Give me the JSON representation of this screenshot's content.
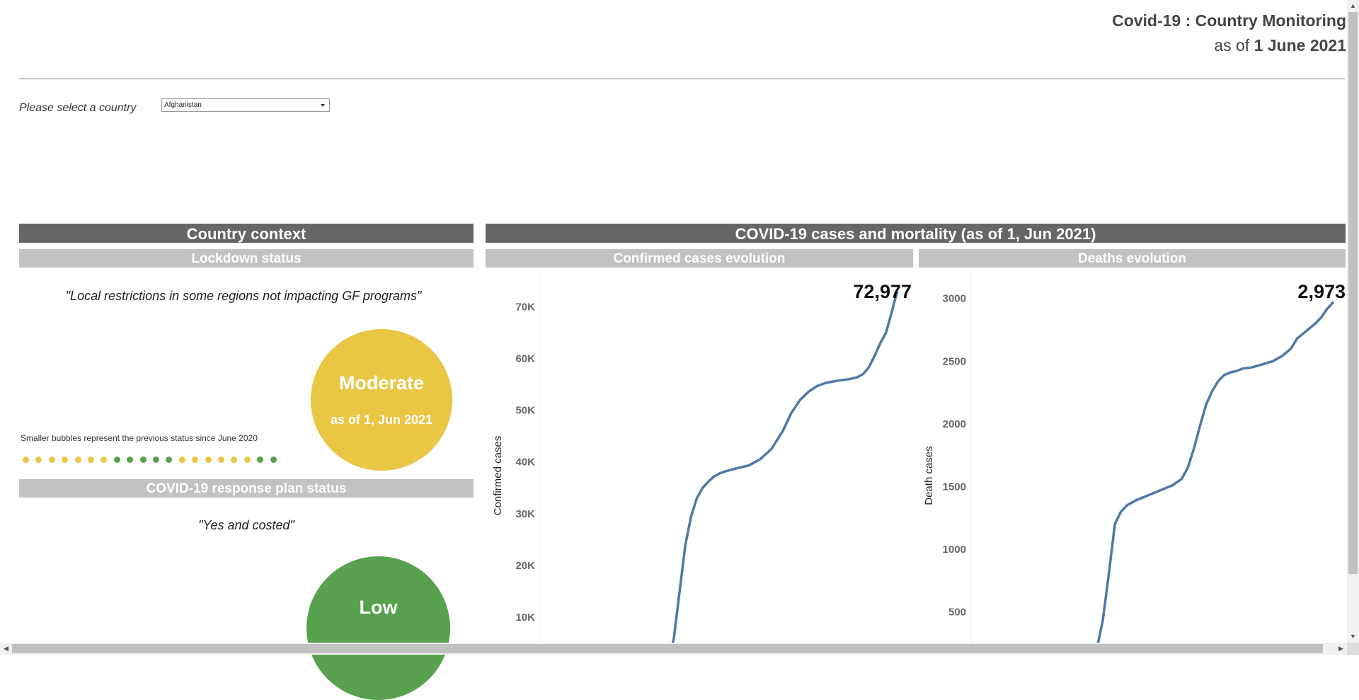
{
  "header": {
    "title": "Covid-19 : Country Monitoring",
    "asof_prefix": "as of",
    "asof_date": "1 June 2021"
  },
  "selector": {
    "label": "Please select a country",
    "value": "Afghanistan"
  },
  "country_context": {
    "title": "Country context",
    "lockdown": {
      "title": "Lockdown status",
      "quote": "\"Local restrictions in some regions not impacting GF programs\"",
      "status": "Moderate",
      "asof": "as of 1, Jun 2021",
      "color": "#EAC645",
      "history_note": "Smaller bubbles represent the previous status since June 2020",
      "history": [
        "moderate",
        "moderate",
        "moderate",
        "moderate",
        "moderate",
        "moderate",
        "moderate",
        "low",
        "low",
        "low",
        "low",
        "low",
        "moderate",
        "moderate",
        "moderate",
        "moderate",
        "moderate",
        "moderate",
        "low",
        "low"
      ]
    },
    "response_plan": {
      "title": "COVID-19 response plan status",
      "quote": "\"Yes and costed\"",
      "status": "Low",
      "color": "#58A14E"
    }
  },
  "colors": {
    "moderate": "#EAC645",
    "low": "#58A14E",
    "line": "#4E79A7",
    "dark_bar": "#666666",
    "light_bar": "#C2C2C2"
  },
  "cases_section": {
    "title": "COVID-19 cases and mortality (as of 1, Jun 2021)"
  },
  "chart_data": [
    {
      "type": "line",
      "title": "Confirmed cases evolution",
      "ylabel": "Confirmed cases",
      "xlabel": "",
      "ylim": [
        0,
        75000
      ],
      "yticks": [
        10000,
        20000,
        30000,
        40000,
        50000,
        60000,
        70000
      ],
      "ytick_labels": [
        "10K",
        "20K",
        "30K",
        "40K",
        "50K",
        "60K",
        "70K"
      ],
      "latest_label": "72,977",
      "grid": false,
      "series": [
        {
          "x": [
            0,
            0.06,
            0.12,
            0.16,
            0.19,
            0.2,
            0.22,
            0.24,
            0.26,
            0.28,
            0.3,
            0.32,
            0.34,
            0.36,
            0.38,
            0.4,
            0.44,
            0.48,
            0.52,
            0.56,
            0.6,
            0.63,
            0.66,
            0.69,
            0.72,
            0.75,
            0.78,
            0.8,
            0.83,
            0.86,
            0.88,
            0.9,
            0.92,
            0.94,
            0.96,
            0.97,
            0.98,
            0.99,
            1.0
          ],
          "values": [
            0,
            0,
            0,
            0,
            0,
            1000,
            6000,
            15000,
            24000,
            29500,
            33000,
            35000,
            36200,
            37200,
            37800,
            38200,
            38800,
            39300,
            40500,
            42500,
            46000,
            49500,
            52000,
            53600,
            54700,
            55300,
            55600,
            55800,
            56000,
            56400,
            57000,
            58300,
            60500,
            63000,
            65000,
            67000,
            69000,
            71200,
            72977
          ]
        }
      ]
    },
    {
      "type": "line",
      "title": "Deaths evolution",
      "ylabel": "Death cases",
      "xlabel": "",
      "ylim": [
        0,
        3100
      ],
      "yticks": [
        500,
        1000,
        1500,
        2000,
        2500,
        3000
      ],
      "ytick_labels": [
        "500",
        "1000",
        "1500",
        "2000",
        "2500",
        "3000"
      ],
      "latest_label": "2,973",
      "grid": false,
      "series": [
        {
          "x": [
            0,
            0.1,
            0.15,
            0.17,
            0.19,
            0.2,
            0.22,
            0.24,
            0.26,
            0.28,
            0.3,
            0.32,
            0.35,
            0.38,
            0.41,
            0.44,
            0.47,
            0.5,
            0.52,
            0.54,
            0.56,
            0.58,
            0.6,
            0.62,
            0.64,
            0.66,
            0.68,
            0.7,
            0.73,
            0.76,
            0.8,
            0.83,
            0.86,
            0.88,
            0.9,
            0.92,
            0.94,
            0.96,
            0.98,
            1.0
          ],
          "values": [
            0,
            0,
            0,
            0,
            0,
            70,
            200,
            430,
            800,
            1200,
            1300,
            1350,
            1390,
            1420,
            1450,
            1480,
            1510,
            1560,
            1650,
            1800,
            1980,
            2150,
            2260,
            2340,
            2390,
            2410,
            2420,
            2440,
            2450,
            2470,
            2500,
            2540,
            2600,
            2680,
            2720,
            2760,
            2800,
            2850,
            2920,
            2973
          ]
        }
      ]
    }
  ]
}
